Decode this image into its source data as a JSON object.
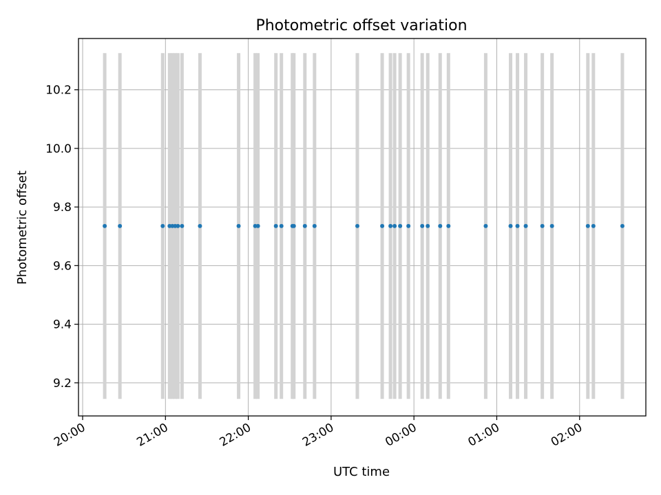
{
  "chart_data": {
    "type": "scatter",
    "title": "Photometric offset variation",
    "xlabel": "UTC time",
    "ylabel": "Photometric offset",
    "grid": true,
    "x_ticks": [
      "20:00",
      "21:00",
      "22:00",
      "23:00",
      "00:00",
      "01:00",
      "02:00"
    ],
    "x_tick_values": [
      "2000-01-01T20:00",
      "2000-01-01T21:00",
      "2000-01-01T22:00",
      "2000-01-01T23:00",
      "2000-01-02T00:00",
      "2000-01-02T01:00",
      "2000-01-02T02:00"
    ],
    "xlim": [
      "2000-01-01T19:57",
      "2000-01-02T02:48"
    ],
    "y_ticks": [
      "9.2",
      "9.4",
      "9.6",
      "9.8",
      "10.0",
      "10.2"
    ],
    "y_tick_values": [
      9.2,
      9.4,
      9.6,
      9.8,
      10.0,
      10.2
    ],
    "ylim": [
      9.087,
      10.375
    ],
    "bars": {
      "color": "#d3d3d3",
      "ymin": 9.145,
      "ymax": 10.325
    },
    "points": {
      "color": "#1f77b4",
      "y": 9.735,
      "x": [
        "2000-01-01T20:16",
        "2000-01-01T20:27",
        "2000-01-01T20:58",
        "2000-01-01T21:03",
        "2000-01-01T21:05",
        "2000-01-01T21:07",
        "2000-01-01T21:09",
        "2000-01-01T21:12",
        "2000-01-01T21:25",
        "2000-01-01T21:53",
        "2000-01-01T22:05",
        "2000-01-01T22:07",
        "2000-01-01T22:20",
        "2000-01-01T22:24",
        "2000-01-01T22:32",
        "2000-01-01T22:33",
        "2000-01-01T22:41",
        "2000-01-01T22:48",
        "2000-01-01T23:19",
        "2000-01-01T23:37",
        "2000-01-01T23:43",
        "2000-01-01T23:46",
        "2000-01-01T23:50",
        "2000-01-01T23:56",
        "2000-01-02T00:06",
        "2000-01-02T00:10",
        "2000-01-02T00:19",
        "2000-01-02T00:25",
        "2000-01-02T00:52",
        "2000-01-02T01:10",
        "2000-01-02T01:15",
        "2000-01-02T01:21",
        "2000-01-02T01:33",
        "2000-01-02T01:40",
        "2000-01-02T02:06",
        "2000-01-02T02:10",
        "2000-01-02T02:31"
      ]
    }
  }
}
